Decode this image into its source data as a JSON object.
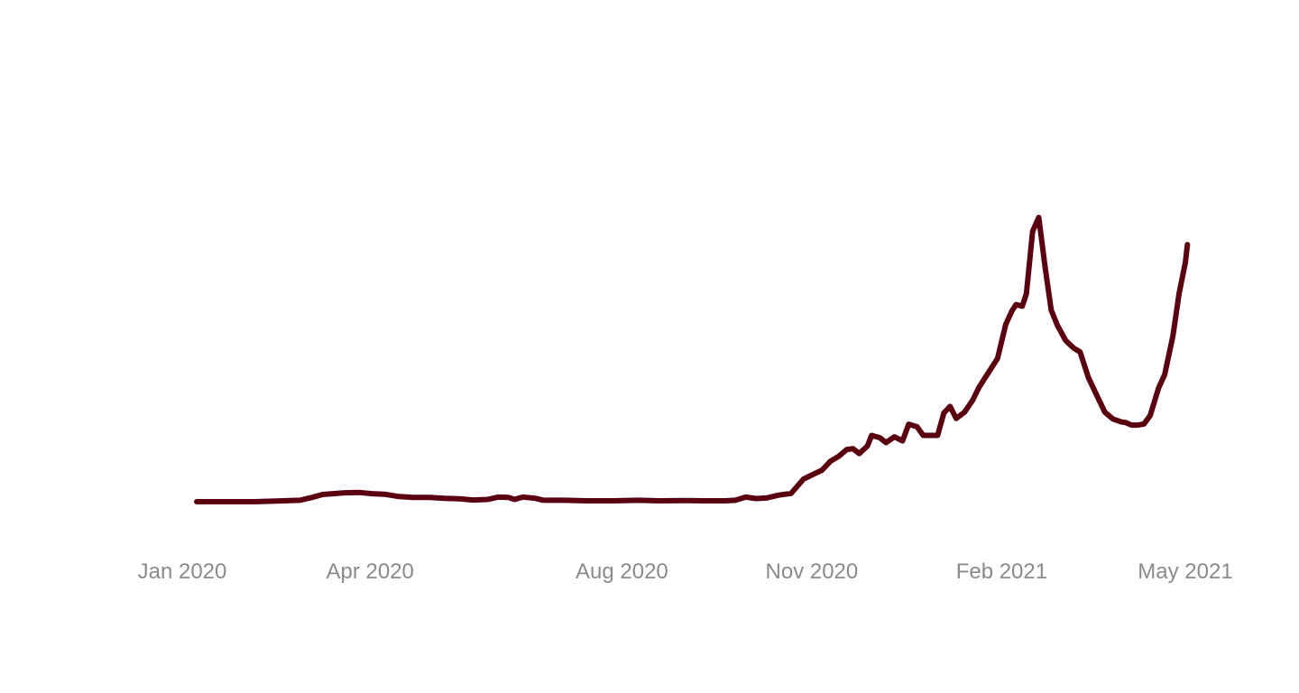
{
  "chart_data": {
    "type": "line",
    "title": "",
    "xlabel": "",
    "ylabel": "",
    "grid": false,
    "legend": "none",
    "x_range": [
      "2020-01-01",
      "2021-05-01"
    ],
    "y_range": [
      0,
      100
    ],
    "x_ticks": [
      {
        "date": "2020-01-01",
        "label": "Jan 2020"
      },
      {
        "date": "2020-04-01",
        "label": "Apr 2020"
      },
      {
        "date": "2020-08-01",
        "label": "Aug 2020"
      },
      {
        "date": "2020-11-01",
        "label": "Nov 2020"
      },
      {
        "date": "2021-02-01",
        "label": "Feb 2021"
      },
      {
        "date": "2021-05-01",
        "label": "May 2021"
      }
    ],
    "series": [
      {
        "color": "#5b0010",
        "points": [
          [
            "2020-01-08",
            0.0
          ],
          [
            "2020-01-22",
            0.0
          ],
          [
            "2020-02-05",
            0.0
          ],
          [
            "2020-02-19",
            0.3
          ],
          [
            "2020-02-27",
            0.5
          ],
          [
            "2020-03-04",
            1.5
          ],
          [
            "2020-03-09",
            2.5
          ],
          [
            "2020-03-14",
            2.8
          ],
          [
            "2020-03-20",
            3.1
          ],
          [
            "2020-03-27",
            3.2
          ],
          [
            "2020-04-02",
            2.8
          ],
          [
            "2020-04-08",
            2.6
          ],
          [
            "2020-04-15",
            1.8
          ],
          [
            "2020-04-22",
            1.5
          ],
          [
            "2020-04-30",
            1.5
          ],
          [
            "2020-05-07",
            1.2
          ],
          [
            "2020-05-14",
            1.0
          ],
          [
            "2020-05-21",
            0.6
          ],
          [
            "2020-05-28",
            0.8
          ],
          [
            "2020-06-02",
            1.6
          ],
          [
            "2020-06-07",
            1.5
          ],
          [
            "2020-06-10",
            0.8
          ],
          [
            "2020-06-14",
            1.6
          ],
          [
            "2020-06-20",
            1.2
          ],
          [
            "2020-06-24",
            0.5
          ],
          [
            "2020-07-04",
            0.5
          ],
          [
            "2020-07-15",
            0.3
          ],
          [
            "2020-07-28",
            0.3
          ],
          [
            "2020-08-09",
            0.5
          ],
          [
            "2020-08-19",
            0.3
          ],
          [
            "2020-08-31",
            0.4
          ],
          [
            "2020-09-10",
            0.3
          ],
          [
            "2020-09-20",
            0.3
          ],
          [
            "2020-09-25",
            0.5
          ],
          [
            "2020-09-30",
            1.6
          ],
          [
            "2020-10-05",
            1.1
          ],
          [
            "2020-10-10",
            1.3
          ],
          [
            "2020-10-16",
            2.3
          ],
          [
            "2020-10-22",
            2.9
          ],
          [
            "2020-10-28",
            7.9
          ],
          [
            "2020-11-01",
            9.3
          ],
          [
            "2020-11-06",
            11.0
          ],
          [
            "2020-11-10",
            14.1
          ],
          [
            "2020-11-14",
            15.8
          ],
          [
            "2020-11-18",
            18.2
          ],
          [
            "2020-11-21",
            18.5
          ],
          [
            "2020-11-24",
            16.8
          ],
          [
            "2020-11-28",
            19.4
          ],
          [
            "2020-11-30",
            23.1
          ],
          [
            "2020-12-04",
            22.3
          ],
          [
            "2020-12-07",
            20.6
          ],
          [
            "2020-12-11",
            22.6
          ],
          [
            "2020-12-15",
            21.2
          ],
          [
            "2020-12-18",
            27.0
          ],
          [
            "2020-12-22",
            26.1
          ],
          [
            "2020-12-25",
            23.1
          ],
          [
            "2020-12-29",
            23.1
          ],
          [
            "2021-01-01",
            23.1
          ],
          [
            "2021-01-04",
            30.9
          ],
          [
            "2021-01-07",
            33.2
          ],
          [
            "2021-01-10",
            29.0
          ],
          [
            "2021-01-14",
            31.2
          ],
          [
            "2021-01-18",
            35.4
          ],
          [
            "2021-01-21",
            39.8
          ],
          [
            "2021-01-25",
            44.3
          ],
          [
            "2021-01-30",
            49.9
          ],
          [
            "2021-02-03",
            61.8
          ],
          [
            "2021-02-06",
            66.5
          ],
          [
            "2021-02-08",
            68.7
          ],
          [
            "2021-02-11",
            68.1
          ],
          [
            "2021-02-13",
            72.5
          ],
          [
            "2021-02-16",
            94.2
          ],
          [
            "2021-02-19",
            99.1
          ],
          [
            "2021-02-22",
            82.1
          ],
          [
            "2021-02-25",
            66.8
          ],
          [
            "2021-02-28",
            61.5
          ],
          [
            "2021-03-04",
            56.2
          ],
          [
            "2021-03-08",
            53.5
          ],
          [
            "2021-03-11",
            52.2
          ],
          [
            "2021-03-15",
            43.3
          ],
          [
            "2021-03-19",
            37.2
          ],
          [
            "2021-03-23",
            31.2
          ],
          [
            "2021-03-27",
            28.8
          ],
          [
            "2021-03-31",
            27.8
          ],
          [
            "2021-04-02",
            27.6
          ],
          [
            "2021-04-05",
            26.7
          ],
          [
            "2021-04-08",
            26.7
          ],
          [
            "2021-04-11",
            27.1
          ],
          [
            "2021-04-14",
            30.1
          ],
          [
            "2021-04-18",
            39.6
          ],
          [
            "2021-04-21",
            44.3
          ],
          [
            "2021-04-25",
            57.9
          ],
          [
            "2021-04-28",
            72.6
          ],
          [
            "2021-05-01",
            83.3
          ],
          [
            "2021-05-02",
            89.6
          ]
        ]
      }
    ]
  }
}
